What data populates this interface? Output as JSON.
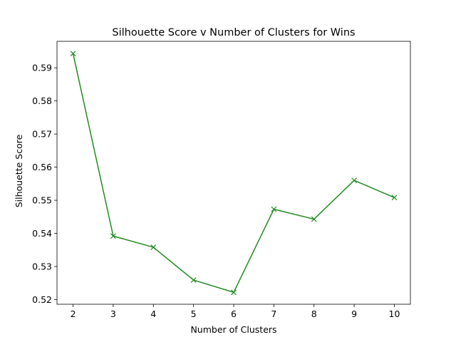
{
  "chart_data": {
    "type": "line",
    "title": "Silhouette Score v Number of Clusters for Wins",
    "xlabel": "Number of Clusters",
    "ylabel": "Silhouette Score",
    "x": [
      2,
      3,
      4,
      5,
      6,
      7,
      8,
      9,
      10
    ],
    "xticks": [
      2,
      3,
      4,
      5,
      6,
      7,
      8,
      9,
      10
    ],
    "yticks": [
      0.52,
      0.53,
      0.54,
      0.55,
      0.56,
      0.57,
      0.58,
      0.59
    ],
    "xlim": [
      1.6,
      10.4
    ],
    "ylim": [
      0.5186,
      0.598
    ],
    "grid": false,
    "marker": "x",
    "color": "#228b22",
    "series": [
      {
        "values": [
          0.5943,
          0.5392,
          0.5358,
          0.5259,
          0.5222,
          0.5473,
          0.5443,
          0.556,
          0.5508
        ]
      }
    ]
  }
}
